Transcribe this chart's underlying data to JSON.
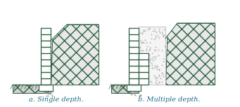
{
  "fig_width": 3.41,
  "fig_height": 1.53,
  "dpi": 100,
  "bg_color": "#ffffff",
  "label_a": "a. Single depth.",
  "label_b": "b. Multiple depth.",
  "label_color": "#1a6b8a",
  "label_fontsize": 7.0,
  "wall_color": "#2d6040",
  "block_fill": "#ffffff",
  "soil_face": "#e8e8e8",
  "soil_edge": "#2d6040",
  "ground_fill": "#c8c8c8"
}
